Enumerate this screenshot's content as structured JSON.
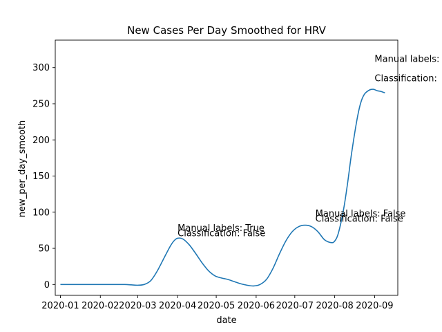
{
  "chart_data": {
    "type": "line",
    "title": "New Cases Per Day Smoothed for HRV",
    "xlabel": "date",
    "ylabel": "new_per_day_smooth",
    "line_color": "#1f77b4",
    "x_axis": {
      "range_days": [
        -4,
        262
      ],
      "ticks": [
        {
          "label": "2020-01",
          "day": 0
        },
        {
          "label": "2020-02",
          "day": 31
        },
        {
          "label": "2020-03",
          "day": 60
        },
        {
          "label": "2020-04",
          "day": 91
        },
        {
          "label": "2020-05",
          "day": 121
        },
        {
          "label": "2020-06",
          "day": 152
        },
        {
          "label": "2020-07",
          "day": 182
        },
        {
          "label": "2020-08",
          "day": 213
        },
        {
          "label": "2020-09",
          "day": 244
        }
      ]
    },
    "y_axis": {
      "ylim": [
        -15,
        338
      ],
      "ticks": [
        0,
        50,
        100,
        150,
        200,
        250,
        300
      ]
    },
    "series": [
      {
        "name": "new_per_day_smooth",
        "x_days": [
          0,
          20,
          40,
          50,
          55,
          60,
          65,
          70,
          75,
          80,
          85,
          88,
          91,
          95,
          100,
          105,
          110,
          115,
          120,
          125,
          130,
          135,
          140,
          145,
          150,
          155,
          160,
          165,
          170,
          175,
          180,
          185,
          190,
          195,
          200,
          205,
          210,
          213,
          216,
          220,
          223,
          226,
          230,
          233,
          236,
          240,
          243,
          246,
          249,
          252
        ],
        "y": [
          0,
          0,
          0,
          0,
          -0.5,
          -1,
          0,
          5,
          18,
          35,
          52,
          60,
          64,
          63,
          55,
          43,
          30,
          19,
          12,
          9,
          7,
          4,
          1,
          -1,
          -2,
          0,
          7,
          22,
          42,
          60,
          73,
          80,
          82,
          80,
          73,
          62,
          58,
          60,
          72,
          105,
          140,
          180,
          225,
          250,
          263,
          269,
          270,
          268,
          267,
          265
        ]
      }
    ],
    "annotations": [
      {
        "text": "Manual labels: True",
        "day": 91,
        "value": 74
      },
      {
        "text": "Classification: False",
        "day": 91,
        "value": 67
      },
      {
        "text": "Manual labels: False",
        "day": 198,
        "value": 94
      },
      {
        "text": "Classification: False",
        "day": 198,
        "value": 87
      },
      {
        "text": "Manual labels:",
        "day": 244,
        "value": 308
      },
      {
        "text": "Classification:",
        "day": 244,
        "value": 281
      }
    ]
  }
}
